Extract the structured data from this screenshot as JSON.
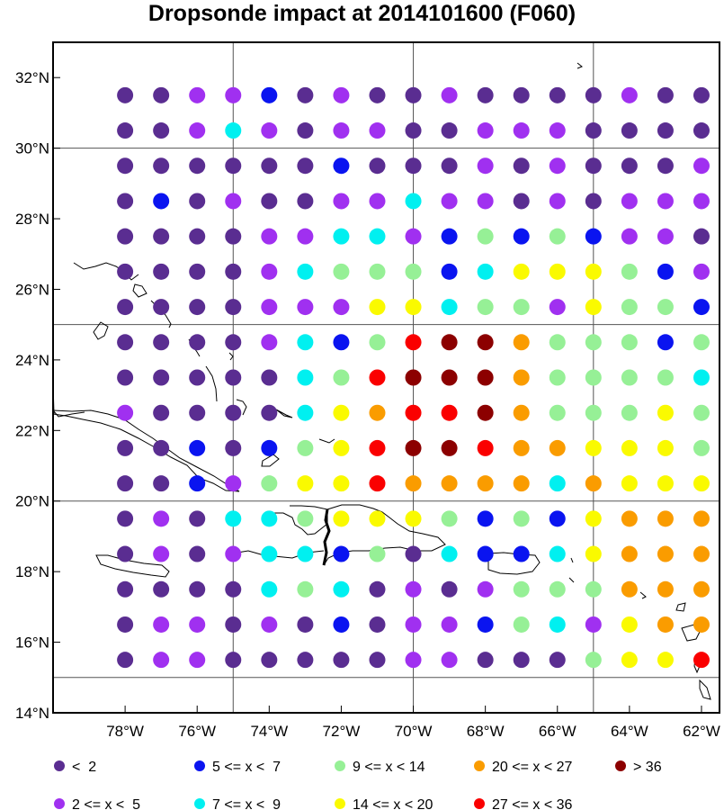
{
  "title": "Dropsonde impact at 2014101600 (F060)",
  "chart_data": {
    "type": "scatter",
    "title": "Dropsonde impact at 2014101600 (F060)",
    "lon_range": [
      -80,
      -61.5
    ],
    "lat_range": [
      14,
      33
    ],
    "grid_lons": [
      -75,
      -70,
      -65
    ],
    "grid_lats": [
      15,
      20,
      25,
      30
    ],
    "x_tick_labels": [
      "78°W",
      "76°W",
      "74°W",
      "72°W",
      "70°W",
      "68°W",
      "66°W",
      "64°W",
      "62°W"
    ],
    "x_tick_values": [
      -78,
      -76,
      -74,
      -72,
      -70,
      -68,
      -66,
      -64,
      -62
    ],
    "y_tick_labels": [
      "14°N",
      "16°N",
      "18°N",
      "20°N",
      "22°N",
      "24°N",
      "26°N",
      "28°N",
      "30°N",
      "32°N"
    ],
    "y_tick_values": [
      14,
      16,
      18,
      20,
      22,
      24,
      26,
      28,
      30,
      32
    ],
    "point_lons": [
      -78,
      -77,
      -76,
      -75,
      -74,
      -73,
      -72,
      -71,
      -70,
      -69,
      -68,
      -67,
      -66,
      -65,
      -64,
      -63,
      -62
    ],
    "point_lats": [
      31.5,
      30.5,
      29.5,
      28.5,
      27.5,
      26.5,
      25.5,
      24.5,
      23.5,
      22.5,
      21.5,
      20.5,
      19.5,
      18.5,
      17.5,
      16.5,
      15.5
    ],
    "categories": [
      {
        "key": 0,
        "label": "<  2",
        "color": "#5a2d91"
      },
      {
        "key": 1,
        "label": "2 <= x <  5",
        "color": "#a030f0"
      },
      {
        "key": 2,
        "label": "5 <= x <  7",
        "color": "#0a14f0"
      },
      {
        "key": 3,
        "label": "7 <= x <  9",
        "color": "#00f0f0"
      },
      {
        "key": 4,
        "label": "9 <= x < 14",
        "color": "#96f096"
      },
      {
        "key": 5,
        "label": "14 <= x < 20",
        "color": "#fafa00"
      },
      {
        "key": 6,
        "label": "20 <= x < 27",
        "color": "#fa9c00"
      },
      {
        "key": 7,
        "label": "27 <= x < 36",
        "color": "#fa0000"
      },
      {
        "key": 8,
        "label": "> 36",
        "color": "#8c0000"
      }
    ],
    "legend_order": [
      0,
      2,
      4,
      6,
      8,
      1,
      3,
      5,
      7
    ],
    "grid": [
      [
        0,
        0,
        1,
        1,
        2,
        0,
        1,
        0,
        0,
        1,
        0,
        0,
        0,
        0,
        1,
        0,
        0
      ],
      [
        0,
        0,
        1,
        3,
        1,
        0,
        1,
        1,
        0,
        0,
        1,
        1,
        1,
        0,
        0,
        0,
        0
      ],
      [
        0,
        0,
        0,
        0,
        0,
        0,
        2,
        0,
        0,
        0,
        1,
        0,
        1,
        0,
        0,
        0,
        1
      ],
      [
        0,
        2,
        0,
        1,
        0,
        0,
        1,
        1,
        3,
        1,
        1,
        0,
        1,
        0,
        1,
        1,
        1
      ],
      [
        0,
        0,
        0,
        0,
        1,
        1,
        3,
        3,
        1,
        2,
        4,
        2,
        4,
        2,
        1,
        1,
        0
      ],
      [
        0,
        0,
        0,
        0,
        1,
        3,
        4,
        4,
        4,
        2,
        3,
        5,
        5,
        5,
        4,
        2,
        1
      ],
      [
        0,
        0,
        0,
        0,
        1,
        1,
        1,
        5,
        5,
        3,
        4,
        4,
        1,
        5,
        4,
        4,
        2
      ],
      [
        0,
        0,
        0,
        0,
        1,
        3,
        2,
        4,
        7,
        8,
        8,
        6,
        4,
        4,
        4,
        2,
        4
      ],
      [
        0,
        0,
        0,
        0,
        0,
        3,
        4,
        7,
        8,
        8,
        8,
        6,
        4,
        4,
        4,
        4,
        3
      ],
      [
        1,
        0,
        0,
        0,
        0,
        3,
        5,
        6,
        7,
        7,
        8,
        6,
        4,
        4,
        4,
        5,
        4
      ],
      [
        0,
        0,
        2,
        0,
        2,
        4,
        5,
        7,
        8,
        8,
        7,
        6,
        6,
        5,
        5,
        5,
        4
      ],
      [
        0,
        0,
        2,
        1,
        4,
        5,
        5,
        7,
        6,
        6,
        6,
        6,
        3,
        6,
        5,
        5,
        5
      ],
      [
        0,
        1,
        0,
        3,
        3,
        4,
        5,
        5,
        5,
        4,
        2,
        4,
        2,
        5,
        6,
        6,
        6
      ],
      [
        0,
        1,
        0,
        1,
        3,
        3,
        2,
        4,
        0,
        3,
        2,
        2,
        3,
        5,
        6,
        6,
        6
      ],
      [
        0,
        0,
        0,
        0,
        3,
        4,
        3,
        0,
        1,
        0,
        1,
        4,
        4,
        4,
        6,
        6,
        6
      ],
      [
        0,
        1,
        1,
        0,
        1,
        0,
        2,
        0,
        1,
        1,
        2,
        4,
        3,
        1,
        5,
        6,
        6
      ],
      [
        0,
        1,
        1,
        0,
        0,
        0,
        0,
        0,
        1,
        1,
        0,
        0,
        0,
        4,
        5,
        5,
        7
      ]
    ]
  }
}
